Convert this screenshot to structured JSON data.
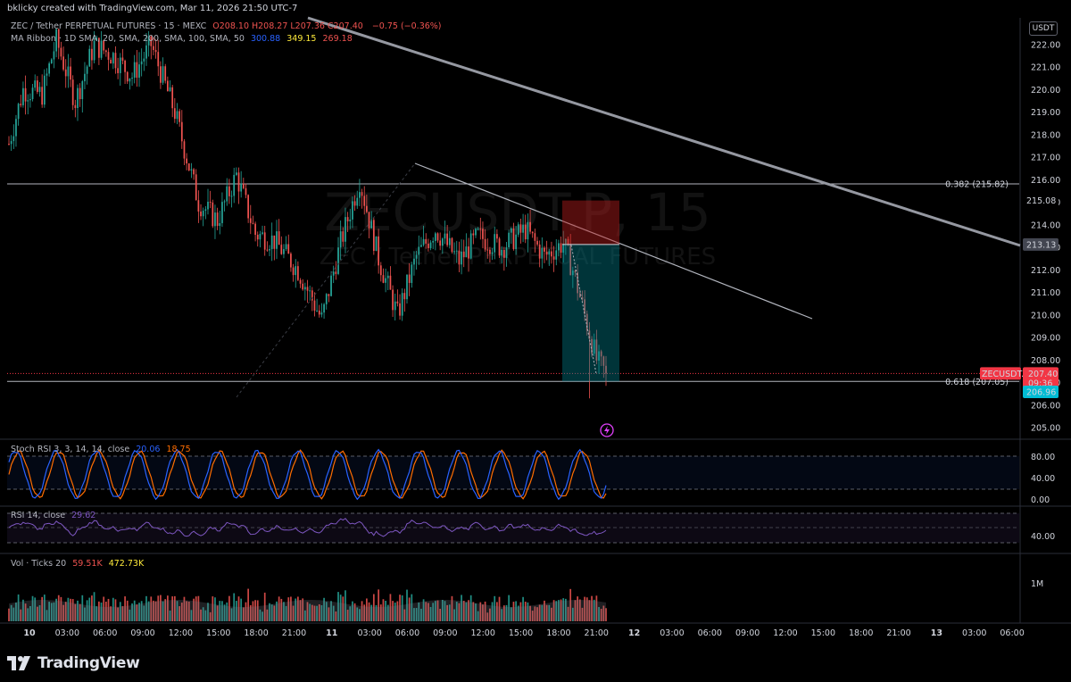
{
  "header": {
    "credit": "bklicky created with TradingView.com, Mar 11, 2026 21:50 UTC-7"
  },
  "legend": {
    "symbol": "ZEC / Tether PERPETUAL FUTURES · 15 · MEXC",
    "ohlc": [
      {
        "k": "O",
        "v": "208.10"
      },
      {
        "k": "H",
        "v": "208.27"
      },
      {
        "k": "L",
        "v": "207.36"
      },
      {
        "k": "C",
        "v": "207.40"
      }
    ],
    "change": "−0.75 (−0.36%)",
    "ma_label": "MA Ribbon · 1D SMA, 20, SMA, 200, SMA, 100, SMA, 50",
    "ma_values": [
      "300.88",
      "349.15",
      "269.18"
    ],
    "stoch_label": "Stoch RSI 3, 3, 14, 14, close",
    "stoch_k": "20.06",
    "stoch_d": "18.75",
    "rsi_label": "RSI 14, close",
    "rsi_val": "29.62",
    "vol_label": "Vol · Ticks 20",
    "vol_a": "59.51K",
    "vol_b": "472.73K"
  },
  "watermark": {
    "ticker": "ZECUSDT.P, 15",
    "name": "ZEC / Tether PERPETUAL FUTURES"
  },
  "currency_box": "USDT",
  "price_axis": {
    "ticks": [
      "222.00",
      "221.00",
      "220.00",
      "219.00",
      "218.00",
      "217.00",
      "216.00",
      "215.00",
      "214.00",
      "213.00",
      "212.00",
      "211.00",
      "210.00",
      "209.00",
      "208.00",
      "207.00",
      "206.00",
      "205.00"
    ]
  },
  "fib": [
    {
      "label": "0.382 (215.82)",
      "price": 215.82
    },
    {
      "label": "0.618 (207.05)",
      "price": 207.05
    }
  ],
  "price_tags": {
    "tl1": "215.08",
    "tl2": "213.13",
    "symbol_tag": "ZECUSDT.P",
    "last": "207.40",
    "countdown": "09:36",
    "bid": "206.96"
  },
  "stoch_axis": [
    "80.00",
    "40.00",
    "0.00"
  ],
  "rsi_axis": [
    "40.00"
  ],
  "vol_axis": [
    "1M"
  ],
  "time_axis": [
    "10",
    "03:00",
    "06:00",
    "09:00",
    "12:00",
    "15:00",
    "18:00",
    "21:00",
    "11",
    "03:00",
    "06:00",
    "09:00",
    "12:00",
    "15:00",
    "18:00",
    "21:00",
    "12",
    "03:00",
    "06:00",
    "09:00",
    "12:00",
    "15:00",
    "18:00",
    "21:00",
    "13",
    "03:00",
    "06:00"
  ],
  "footer": {
    "brand": "TradingView"
  },
  "colors": {
    "up": "#26a69a",
    "down": "#ef5350",
    "stoch_k": "#2962ff",
    "stoch_d": "#ff6d00",
    "rsi": "#7e57c2",
    "risk": "#b71c1c",
    "reward": "#00838f",
    "last_tag": "#f23645",
    "bid_tag": "#00bcd4"
  },
  "chart_data": {
    "type": "candlestick",
    "symbol": "ZECUSDT.P",
    "interval": "15",
    "ylim": [
      204.5,
      222.7
    ],
    "last_price": 207.4,
    "path_keypoints": [
      {
        "i": 0,
        "p": 217.6
      },
      {
        "i": 6,
        "p": 220.0
      },
      {
        "i": 14,
        "p": 219.8
      },
      {
        "i": 20,
        "p": 222.2
      },
      {
        "i": 28,
        "p": 219.5
      },
      {
        "i": 36,
        "p": 222.0
      },
      {
        "i": 44,
        "p": 221.5
      },
      {
        "i": 52,
        "p": 220.6
      },
      {
        "i": 60,
        "p": 222.0
      },
      {
        "i": 70,
        "p": 219.0
      },
      {
        "i": 80,
        "p": 215.0
      },
      {
        "i": 88,
        "p": 214.2
      },
      {
        "i": 96,
        "p": 216.2
      },
      {
        "i": 104,
        "p": 213.6
      },
      {
        "i": 112,
        "p": 213.3
      },
      {
        "i": 122,
        "p": 212.0
      },
      {
        "i": 132,
        "p": 209.8
      },
      {
        "i": 140,
        "p": 213.2
      },
      {
        "i": 148,
        "p": 216.0
      },
      {
        "i": 156,
        "p": 212.5
      },
      {
        "i": 164,
        "p": 210.0
      },
      {
        "i": 172,
        "p": 212.6
      },
      {
        "i": 180,
        "p": 213.8
      },
      {
        "i": 190,
        "p": 212.4
      },
      {
        "i": 198,
        "p": 213.5
      },
      {
        "i": 208,
        "p": 213.0
      },
      {
        "i": 218,
        "p": 213.8
      },
      {
        "i": 226,
        "p": 212.6
      },
      {
        "i": 234,
        "p": 213.2
      },
      {
        "i": 238,
        "p": 212.0
      },
      {
        "i": 242,
        "p": 210.4
      },
      {
        "i": 248,
        "p": 208.0
      },
      {
        "i": 252,
        "p": 207.4
      }
    ]
  }
}
